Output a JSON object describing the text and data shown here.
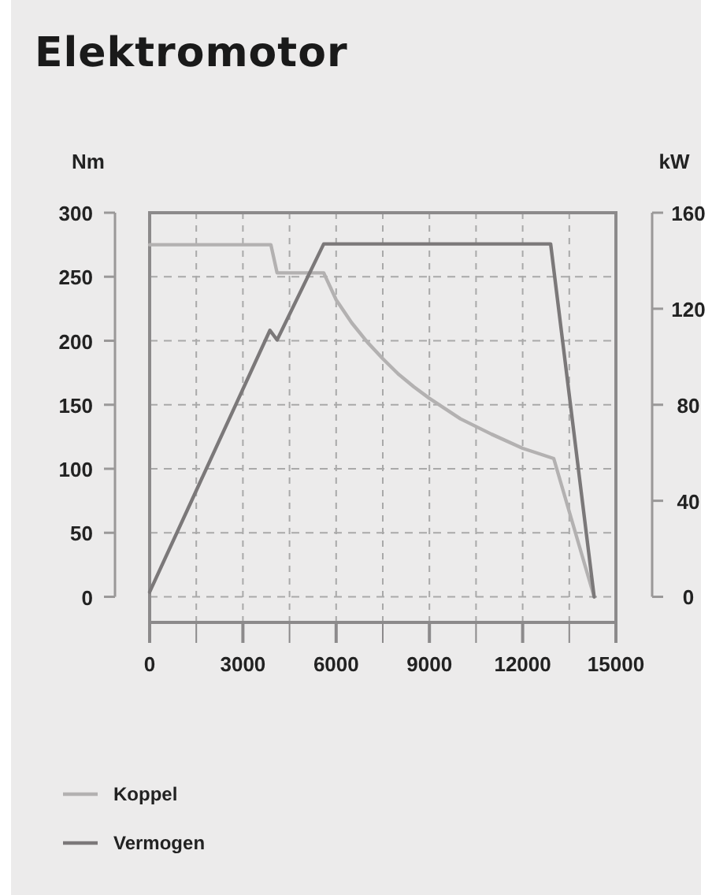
{
  "chart_data": {
    "type": "line",
    "title": "Elektromotor",
    "ylabel": "Nm",
    "y2label": "kW",
    "xlim": [
      0,
      15000
    ],
    "xticks": [
      0,
      {
        "value": 1500,
        "label": null
      },
      3000,
      {
        "value": 4500,
        "label": null
      },
      6000,
      {
        "value": 7500,
        "label": null
      },
      9000,
      {
        "value": 10500,
        "label": null
      },
      12000,
      {
        "value": 13500,
        "label": null
      },
      15000
    ],
    "ylim": [
      -20,
      300
    ],
    "yticks": [
      0,
      50,
      100,
      150,
      200,
      250,
      300
    ],
    "y2lim": [
      -10.67,
      160
    ],
    "y2ticks": [
      0,
      40,
      80,
      120,
      160
    ],
    "grid": true,
    "legend": "bottom",
    "marker": "none",
    "line_style": "solid",
    "series": [
      {
        "name": "Koppel",
        "color": "#b3b1b1",
        "x": [
          0,
          3900,
          4100,
          5600,
          6000,
          6500,
          7000,
          7500,
          8000,
          8500,
          9000,
          10000,
          11000,
          12000,
          13000,
          14300
        ],
        "values": [
          275,
          275,
          253,
          253,
          232,
          214,
          199,
          186,
          174,
          164,
          155,
          139,
          127,
          116,
          108,
          0
        ]
      },
      {
        "name": "Vermogen",
        "color": "#7b7879",
        "axis": "y2",
        "x": [
          0,
          3870,
          4100,
          5600,
          12900,
          14300
        ],
        "values": [
          2,
          111,
          107,
          147,
          147,
          0
        ]
      }
    ]
  }
}
